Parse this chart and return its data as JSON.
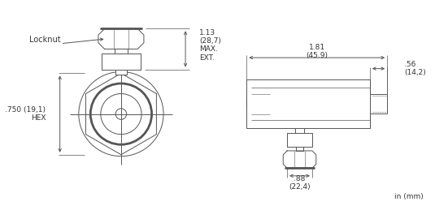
{
  "bg_color": "#ffffff",
  "line_color": "#555555",
  "text_color": "#333333",
  "fig_width": 5.35,
  "fig_height": 2.59,
  "dpi": 100,
  "lw": 0.7,
  "lw_thick": 2.0,
  "lw_med": 1.2,
  "annotations": {
    "locknut": "Locknut",
    "dim_113": "1.13\n(28,7)\nMAX.\nEXT.",
    "dim_750": ".750 (19,1)\nHEX",
    "dim_88": ".88\n(22,4)",
    "dim_181": "1.81\n(45.9)",
    "dim_56": ".56\n(14,2)",
    "unit": "in (mm)"
  }
}
